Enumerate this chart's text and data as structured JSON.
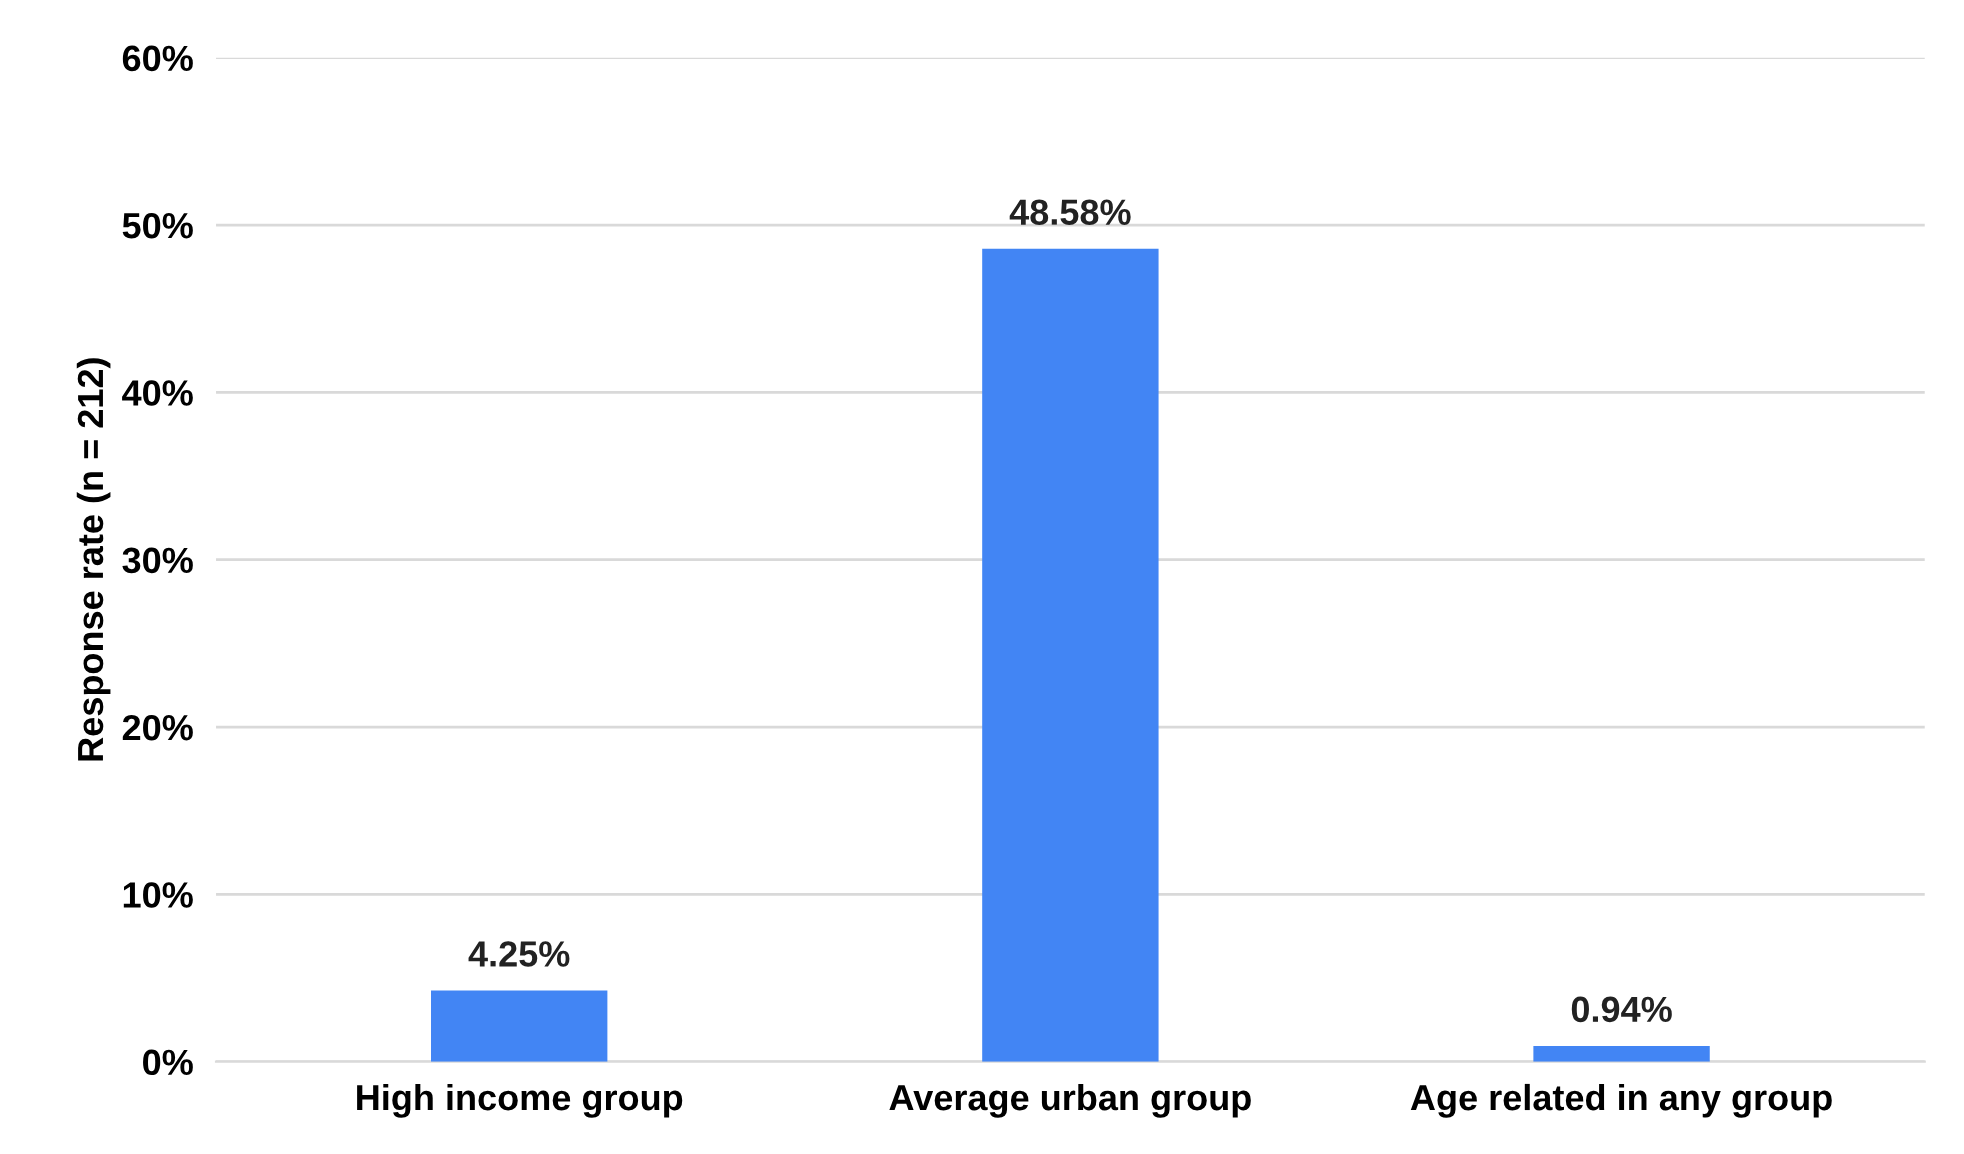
{
  "chart_data": {
    "type": "bar",
    "ylabel": "Response rate (n = 212)",
    "categories": [
      "High income group",
      "Average urban group",
      "Age related in any group"
    ],
    "values": [
      4.25,
      48.58,
      0.94
    ],
    "value_labels": [
      "4.25%",
      "48.58%",
      "0.94%"
    ],
    "color": "#4285f4",
    "ylim": [
      0,
      60
    ],
    "yticks": [
      {
        "value": 0,
        "label": "0%"
      },
      {
        "value": 10,
        "label": "10%"
      },
      {
        "value": 20,
        "label": "20%"
      },
      {
        "value": 30,
        "label": "30%"
      },
      {
        "value": 40,
        "label": "40%"
      },
      {
        "value": 50,
        "label": "50%"
      },
      {
        "value": 60,
        "label": "60%"
      }
    ],
    "grid": "y"
  }
}
